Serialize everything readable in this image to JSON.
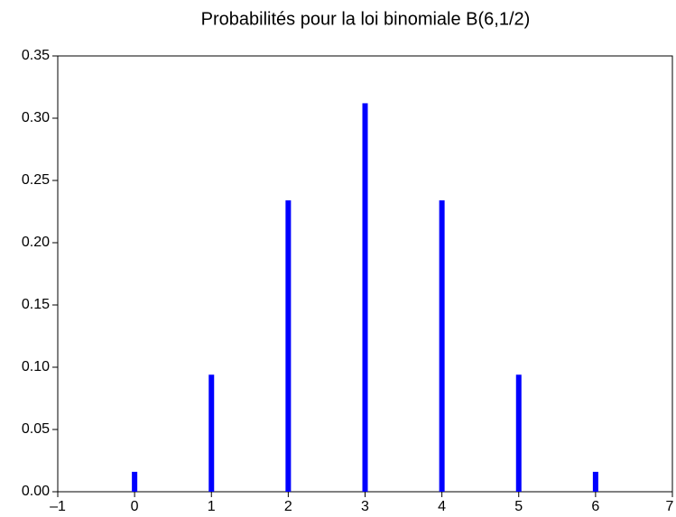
{
  "chart_data": {
    "type": "bar",
    "title": "Probabilités pour la loi binomiale B(6,1/2)",
    "x": [
      0,
      1,
      2,
      3,
      4,
      5,
      6
    ],
    "values": [
      0.016,
      0.094,
      0.234,
      0.312,
      0.234,
      0.094,
      0.016
    ],
    "color": "#0000ff",
    "xlim": [
      -1,
      7
    ],
    "xticks": [
      {
        "value": -1,
        "label": "–1"
      },
      0,
      1,
      2,
      3,
      4,
      5,
      6,
      7
    ],
    "ylim": [
      0,
      0.35
    ],
    "yticks": [
      {
        "value": 0,
        "label": "0.00"
      },
      0.05,
      {
        "value": 0.1,
        "label": "0.10"
      },
      0.15,
      {
        "value": 0.2,
        "label": "0.20"
      },
      0.25,
      {
        "value": 0.3,
        "label": "0.30"
      },
      0.35
    ],
    "grid": false
  }
}
